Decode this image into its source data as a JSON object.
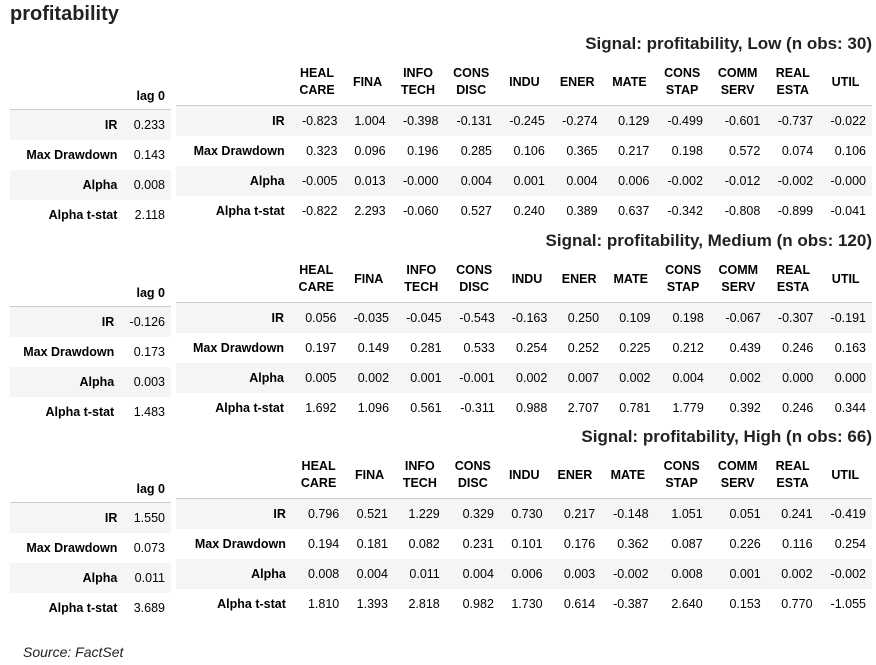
{
  "page_title": "profitability",
  "source": "Source: FactSet",
  "lag_header": "lag 0",
  "row_labels": [
    "IR",
    "Max Drawdown",
    "Alpha",
    "Alpha t-stat"
  ],
  "sector_headers": [
    [
      "HEAL",
      "CARE"
    ],
    [
      "FINA",
      ""
    ],
    [
      "INFO",
      "TECH"
    ],
    [
      "CONS",
      "DISC"
    ],
    [
      "INDU",
      ""
    ],
    [
      "ENER",
      ""
    ],
    [
      "MATE",
      ""
    ],
    [
      "CONS",
      "STAP"
    ],
    [
      "COMM",
      "SERV"
    ],
    [
      "REAL",
      "ESTA"
    ],
    [
      "UTIL",
      ""
    ]
  ],
  "sections": [
    {
      "title": "Signal: profitability, Low (n obs: 30)",
      "lag": [
        "0.233",
        "0.143",
        "0.008",
        "2.118"
      ],
      "rows": [
        [
          "-0.823",
          "1.004",
          "-0.398",
          "-0.131",
          "-0.245",
          "-0.274",
          "0.129",
          "-0.499",
          "-0.601",
          "-0.737",
          "-0.022"
        ],
        [
          "0.323",
          "0.096",
          "0.196",
          "0.285",
          "0.106",
          "0.365",
          "0.217",
          "0.198",
          "0.572",
          "0.074",
          "0.106"
        ],
        [
          "-0.005",
          "0.013",
          "-0.000",
          "0.004",
          "0.001",
          "0.004",
          "0.006",
          "-0.002",
          "-0.012",
          "-0.002",
          "-0.000"
        ],
        [
          "-0.822",
          "2.293",
          "-0.060",
          "0.527",
          "0.240",
          "0.389",
          "0.637",
          "-0.342",
          "-0.808",
          "-0.899",
          "-0.041"
        ]
      ]
    },
    {
      "title": "Signal: profitability, Medium (n obs: 120)",
      "lag": [
        "-0.126",
        "0.173",
        "0.003",
        "1.483"
      ],
      "rows": [
        [
          "0.056",
          "-0.035",
          "-0.045",
          "-0.543",
          "-0.163",
          "0.250",
          "0.109",
          "0.198",
          "-0.067",
          "-0.307",
          "-0.191"
        ],
        [
          "0.197",
          "0.149",
          "0.281",
          "0.533",
          "0.254",
          "0.252",
          "0.225",
          "0.212",
          "0.439",
          "0.246",
          "0.163"
        ],
        [
          "0.005",
          "0.002",
          "0.001",
          "-0.001",
          "0.002",
          "0.007",
          "0.002",
          "0.004",
          "0.002",
          "0.000",
          "0.000"
        ],
        [
          "1.692",
          "1.096",
          "0.561",
          "-0.311",
          "0.988",
          "2.707",
          "0.781",
          "1.779",
          "0.392",
          "0.246",
          "0.344"
        ]
      ]
    },
    {
      "title": "Signal: profitability, High (n obs: 66)",
      "lag": [
        "1.550",
        "0.073",
        "0.011",
        "3.689"
      ],
      "rows": [
        [
          "0.796",
          "0.521",
          "1.229",
          "0.329",
          "0.730",
          "0.217",
          "-0.148",
          "1.051",
          "0.051",
          "0.241",
          "-0.419"
        ],
        [
          "0.194",
          "0.181",
          "0.082",
          "0.231",
          "0.101",
          "0.176",
          "0.362",
          "0.087",
          "0.226",
          "0.116",
          "0.254"
        ],
        [
          "0.008",
          "0.004",
          "0.011",
          "0.004",
          "0.006",
          "0.003",
          "-0.002",
          "0.008",
          "0.001",
          "0.002",
          "-0.002"
        ],
        [
          "1.810",
          "1.393",
          "2.818",
          "0.982",
          "1.730",
          "0.614",
          "-0.387",
          "2.640",
          "0.153",
          "0.770",
          "-1.055"
        ]
      ]
    }
  ]
}
